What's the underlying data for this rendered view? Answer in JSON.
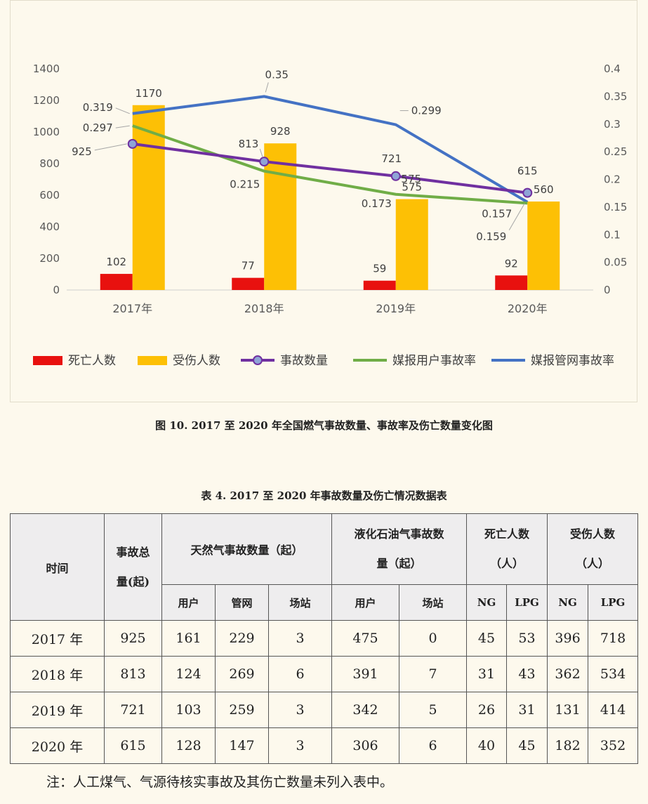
{
  "chart_data": {
    "type": "bar",
    "categories": [
      "2017年",
      "2018年",
      "2019年",
      "2020年"
    ],
    "series": [
      {
        "name": "死亡人数",
        "kind": "bar",
        "axis": "left",
        "color": "#e8110f",
        "values": [
          102,
          77,
          59,
          92
        ]
      },
      {
        "name": "受伤人数",
        "kind": "bar",
        "axis": "left",
        "color": "#fdc005",
        "values": [
          1170,
          928,
          575,
          560
        ]
      },
      {
        "name": "事故数量",
        "kind": "line",
        "axis": "left",
        "color": "#7030a0",
        "marker": "circle",
        "values": [
          925,
          813,
          721,
          615
        ]
      },
      {
        "name": "媒报用户事故率",
        "kind": "line",
        "axis": "right",
        "color": "#70ad47",
        "values": [
          0.297,
          0.215,
          0.173,
          0.157
        ]
      },
      {
        "name": "媒报管网事故率",
        "kind": "line",
        "axis": "right",
        "color": "#4472c4",
        "values": [
          0.319,
          0.35,
          0.299,
          0.159
        ]
      }
    ],
    "y_left": {
      "ylim": [
        0,
        1400
      ],
      "ticks": [
        "0",
        "200",
        "400",
        "600",
        "800",
        "1000",
        "1200",
        "1400"
      ]
    },
    "y_right": {
      "ylim": [
        0,
        0.4
      ],
      "ticks": [
        "0",
        "0.05",
        "0.1",
        "0.15",
        "0.2",
        "0.25",
        "0.3",
        "0.35",
        "0.4"
      ]
    },
    "grid": false,
    "legend": "bottom"
  },
  "figure_caption": "图 10. 2017 至 2020 年全国燃气事故数量、事故率及伤亡数量变化图",
  "table": {
    "caption": "表 4. 2017 至 2020 年事故数量及伤亡情况数据表",
    "headers": {
      "time": "时间",
      "total_line1": "事故总",
      "total_line2": "量(起)",
      "ng": "天然气事故数量（起）",
      "lpg_line1": "液化石油气事故数",
      "lpg_line2": "量（起）",
      "deaths_line1": "死亡人数",
      "deaths_line2": "（人）",
      "injured_line1": "受伤人数",
      "injured_line2": "（人）",
      "sub": [
        "用户",
        "管网",
        "场站",
        "用户",
        "场站",
        "NG",
        "LPG",
        "NG",
        "LPG"
      ]
    },
    "rows": [
      {
        "year": "2017 年",
        "total": "925",
        "ng_user": "161",
        "ng_pipe": "229",
        "ng_station": "3",
        "lpg_user": "475",
        "lpg_station": "0",
        "death_ng": "45",
        "death_lpg": "53",
        "inj_ng": "396",
        "inj_lpg": "718"
      },
      {
        "year": "2018 年",
        "total": "813",
        "ng_user": "124",
        "ng_pipe": "269",
        "ng_station": "6",
        "lpg_user": "391",
        "lpg_station": "7",
        "death_ng": "31",
        "death_lpg": "43",
        "inj_ng": "362",
        "inj_lpg": "534"
      },
      {
        "year": "2019 年",
        "total": "721",
        "ng_user": "103",
        "ng_pipe": "259",
        "ng_station": "3",
        "lpg_user": "342",
        "lpg_station": "5",
        "death_ng": "26",
        "death_lpg": "31",
        "inj_ng": "131",
        "inj_lpg": "414"
      },
      {
        "year": "2020 年",
        "total": "615",
        "ng_user": "128",
        "ng_pipe": "147",
        "ng_station": "3",
        "lpg_user": "306",
        "lpg_station": "6",
        "death_ng": "40",
        "death_lpg": "45",
        "inj_ng": "182",
        "inj_lpg": "352"
      }
    ]
  },
  "note": "注：人工煤气、气源待核实事故及其伤亡数量未列入表中。"
}
